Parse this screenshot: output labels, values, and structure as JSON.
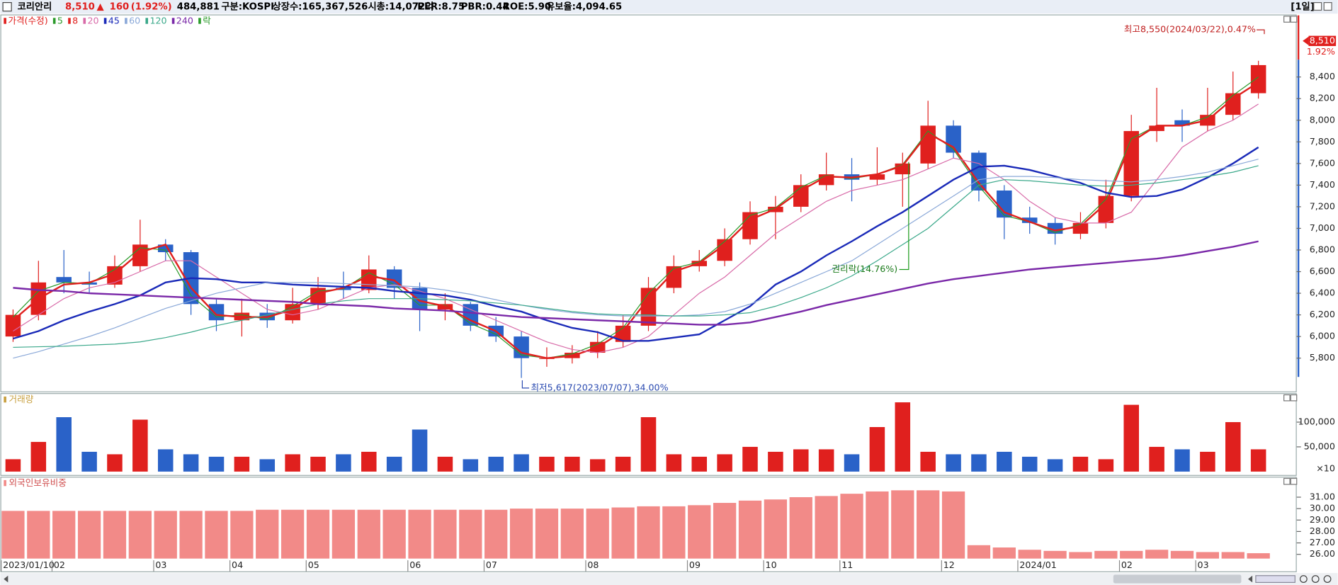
{
  "header": {
    "name": "코리안리",
    "price": "8,510",
    "arrow": "▲",
    "change": "160",
    "change_pct": "(1.92%)",
    "volume": "484,881",
    "market": "구분:KOSPI",
    "shares": "상장수:165,367,526",
    "cap": "시총:14,072억",
    "per": "PER:8.75",
    "pbr": "PBR:0.44",
    "roe": "ROE:5.90",
    "reserve": "유보율:4,094.65",
    "period": "[1일]"
  },
  "chart_data": [
    {
      "type": "candlestick",
      "title": "가격(수정)",
      "color": "#e0201e",
      "down_color": "#2a62c8",
      "rights_legend": "락",
      "rights_color": "#2a9a2a",
      "categories": [
        "2023/01/10",
        null,
        "02",
        null,
        null,
        null,
        "03",
        null,
        null,
        "04",
        null,
        null,
        "05",
        null,
        null,
        null,
        "06",
        null,
        null,
        "07",
        null,
        null,
        null,
        "08",
        null,
        null,
        null,
        "09",
        null,
        null,
        "10",
        null,
        null,
        "11",
        null,
        null,
        null,
        "12",
        null,
        null,
        "2024/01",
        null,
        null,
        null,
        "02",
        null,
        null,
        "03",
        null,
        null
      ],
      "ohlc": [
        [
          6000,
          6250,
          5950,
          6200
        ],
        [
          6200,
          6700,
          6150,
          6500
        ],
        [
          6550,
          6800,
          6400,
          6500
        ],
        [
          6500,
          6600,
          6400,
          6480
        ],
        [
          6480,
          6750,
          6450,
          6650
        ],
        [
          6650,
          7080,
          6600,
          6850
        ],
        [
          6850,
          6900,
          6700,
          6780
        ],
        [
          6780,
          6800,
          6200,
          6300
        ],
        [
          6300,
          6350,
          6050,
          6150
        ],
        [
          6150,
          6350,
          6000,
          6220
        ],
        [
          6220,
          6300,
          6080,
          6150
        ],
        [
          6150,
          6450,
          6120,
          6300
        ],
        [
          6300,
          6550,
          6250,
          6450
        ],
        [
          6450,
          6600,
          6350,
          6430
        ],
        [
          6430,
          6750,
          6400,
          6620
        ],
        [
          6620,
          6650,
          6350,
          6450
        ],
        [
          6450,
          6500,
          6050,
          6250
        ],
        [
          6250,
          6400,
          6150,
          6300
        ],
        [
          6300,
          6320,
          6050,
          6100
        ],
        [
          6100,
          6180,
          5950,
          6000
        ],
        [
          6000,
          6050,
          5617,
          5800
        ],
        [
          5800,
          5900,
          5720,
          5800
        ],
        [
          5800,
          5920,
          5750,
          5850
        ],
        [
          5850,
          6050,
          5800,
          5950
        ],
        [
          5950,
          6200,
          5900,
          6100
        ],
        [
          6100,
          6550,
          6050,
          6450
        ],
        [
          6450,
          6750,
          6400,
          6650
        ],
        [
          6650,
          6800,
          6600,
          6700
        ],
        [
          6700,
          7000,
          6650,
          6900
        ],
        [
          6900,
          7250,
          6850,
          7150
        ],
        [
          7150,
          7300,
          6900,
          7200
        ],
        [
          7200,
          7500,
          7150,
          7400
        ],
        [
          7400,
          7700,
          7350,
          7500
        ],
        [
          7500,
          7650,
          7250,
          7450
        ],
        [
          7450,
          7750,
          7400,
          7500
        ],
        [
          7500,
          7700,
          7200,
          7600
        ],
        [
          7600,
          8180,
          7550,
          7950
        ],
        [
          7950,
          8000,
          7650,
          7700
        ],
        [
          7700,
          7720,
          7250,
          7350
        ],
        [
          7350,
          7400,
          6900,
          7100
        ],
        [
          7100,
          7200,
          6950,
          7050
        ],
        [
          7050,
          7100,
          6850,
          6950
        ],
        [
          6950,
          7150,
          6900,
          7050
        ],
        [
          7050,
          7450,
          7000,
          7300
        ],
        [
          7300,
          8050,
          7250,
          7900
        ],
        [
          7900,
          8300,
          7800,
          7950
        ],
        [
          8000,
          8100,
          7800,
          7950
        ],
        [
          7950,
          8300,
          7900,
          8050
        ],
        [
          8050,
          8450,
          8000,
          8250
        ],
        [
          8250,
          8550,
          8200,
          8510
        ]
      ],
      "series": [
        {
          "name": "5",
          "color": "#2a9a2a",
          "values": [
            6180,
            6420,
            6500,
            6490,
            6620,
            6820,
            6800,
            6380,
            6180,
            6200,
            6160,
            6280,
            6420,
            6440,
            6590,
            6480,
            6290,
            6290,
            6120,
            6020,
            5830,
            5800,
            5840,
            5930,
            6080,
            6400,
            6630,
            6690,
            6880,
            7120,
            7190,
            7380,
            7490,
            7460,
            7500,
            7590,
            7900,
            7730,
            7390,
            7120,
            7060,
            6960,
            7040,
            7270,
            7830,
            7950,
            7950,
            8030,
            8230,
            8400
          ]
        },
        {
          "name": "8",
          "color": "#e0201e",
          "bold": true,
          "values": [
            6150,
            6350,
            6480,
            6500,
            6580,
            6780,
            6850,
            6450,
            6200,
            6180,
            6180,
            6250,
            6400,
            6450,
            6560,
            6520,
            6330,
            6280,
            6150,
            6050,
            5850,
            5800,
            5820,
            5900,
            6050,
            6350,
            6600,
            6680,
            6850,
            7080,
            7180,
            7350,
            7480,
            7470,
            7500,
            7580,
            7880,
            7750,
            7420,
            7150,
            7060,
            6980,
            7020,
            7230,
            7800,
            7950,
            7950,
            8000,
            8200,
            8350
          ]
        },
        {
          "name": "20",
          "color": "#d86aa8",
          "values": [
            6050,
            6200,
            6350,
            6450,
            6500,
            6600,
            6700,
            6700,
            6550,
            6400,
            6250,
            6200,
            6250,
            6350,
            6450,
            6480,
            6420,
            6350,
            6250,
            6150,
            6050,
            5950,
            5880,
            5850,
            5900,
            6000,
            6200,
            6400,
            6550,
            6750,
            6950,
            7100,
            7250,
            7350,
            7400,
            7450,
            7550,
            7650,
            7600,
            7450,
            7250,
            7100,
            7050,
            7050,
            7150,
            7450,
            7750,
            7900,
            8000,
            8150
          ]
        },
        {
          "name": "45",
          "color": "#1a2ab8",
          "bold": true,
          "values": [
            5980,
            6050,
            6150,
            6230,
            6300,
            6380,
            6500,
            6540,
            6530,
            6500,
            6500,
            6480,
            6470,
            6460,
            6450,
            6420,
            6400,
            6380,
            6340,
            6280,
            6230,
            6150,
            6080,
            6040,
            5960,
            5960,
            5990,
            6020,
            6150,
            6280,
            6480,
            6600,
            6750,
            6880,
            7020,
            7150,
            7300,
            7450,
            7570,
            7580,
            7540,
            7480,
            7420,
            7330,
            7290,
            7300,
            7360,
            7470,
            7600,
            7750
          ]
        },
        {
          "name": "60",
          "color": "#8aa8d8",
          "values": [
            5800,
            5860,
            5930,
            6000,
            6080,
            6170,
            6260,
            6330,
            6400,
            6450,
            6500,
            6500,
            6500,
            6490,
            6480,
            6470,
            6460,
            6430,
            6390,
            6340,
            6290,
            6250,
            6220,
            6200,
            6190,
            6190,
            6190,
            6200,
            6230,
            6300,
            6400,
            6500,
            6600,
            6700,
            6850,
            7000,
            7150,
            7300,
            7450,
            7480,
            7480,
            7470,
            7450,
            7440,
            7430,
            7450,
            7480,
            7520,
            7580,
            7640
          ]
        },
        {
          "name": "120",
          "color": "#3aa88a",
          "values": [
            5900,
            5905,
            5910,
            5920,
            5930,
            5950,
            5990,
            6040,
            6100,
            6150,
            6200,
            6250,
            6300,
            6330,
            6350,
            6350,
            6350,
            6340,
            6330,
            6310,
            6290,
            6260,
            6230,
            6210,
            6200,
            6200,
            6190,
            6190,
            6200,
            6220,
            6280,
            6360,
            6450,
            6560,
            6700,
            6850,
            7000,
            7200,
            7400,
            7450,
            7440,
            7420,
            7400,
            7390,
            7400,
            7420,
            7450,
            7480,
            7520,
            7580
          ]
        },
        {
          "name": "240",
          "color": "#7a28a8",
          "bold": true,
          "values": [
            6450,
            6430,
            6420,
            6400,
            6390,
            6380,
            6370,
            6360,
            6350,
            6340,
            6330,
            6320,
            6300,
            6290,
            6280,
            6260,
            6250,
            6240,
            6220,
            6200,
            6180,
            6170,
            6160,
            6150,
            6140,
            6130,
            6120,
            6110,
            6110,
            6130,
            6180,
            6230,
            6290,
            6340,
            6390,
            6440,
            6490,
            6530,
            6560,
            6590,
            6620,
            6640,
            6660,
            6680,
            6700,
            6720,
            6750,
            6790,
            6830,
            6880
          ]
        }
      ],
      "ylim": [
        5500,
        8970
      ],
      "yticks": [
        {
          "value": 5800,
          "label": "5,800"
        },
        {
          "value": 6000,
          "label": "6,000"
        },
        {
          "value": 6200,
          "label": "6,200"
        },
        {
          "value": 6400,
          "label": "6,400"
        },
        {
          "value": 6600,
          "label": "6,600"
        },
        {
          "value": 6800,
          "label": "6,800"
        },
        {
          "value": 7000,
          "label": "7,000"
        },
        {
          "value": 7200,
          "label": "7,200"
        },
        {
          "value": 7400,
          "label": "7,400"
        },
        {
          "value": 7600,
          "label": "7,600"
        },
        {
          "value": 7800,
          "label": "7,800"
        },
        {
          "value": 8000,
          "label": "8,000"
        },
        {
          "value": 8200,
          "label": "8,200"
        },
        {
          "value": 8400,
          "label": "8,400"
        }
      ],
      "annotations": [
        "최고8,550(2024/03/22),0.47%",
        "최저5,617(2023/07/07),34.00%",
        "권리락(14.76%)"
      ],
      "last_price": "8,510",
      "last_change": "1.92%"
    },
    {
      "type": "bar",
      "title": "거래량",
      "color": "#c8a040",
      "annotation": "×10",
      "values": [
        25000,
        60000,
        110000,
        40000,
        35000,
        105000,
        45000,
        35000,
        30000,
        30000,
        25000,
        35000,
        30000,
        35000,
        40000,
        30000,
        85000,
        30000,
        25000,
        30000,
        35000,
        30000,
        30000,
        25000,
        30000,
        110000,
        35000,
        30000,
        35000,
        50000,
        40000,
        45000,
        45000,
        35000,
        90000,
        140000,
        40000,
        35000,
        35000,
        40000,
        30000,
        25000,
        30000,
        25000,
        135000,
        50000,
        45000,
        40000,
        100000,
        45000
      ],
      "ylim": [
        0,
        150000
      ],
      "yticks": [
        {
          "value": 50000,
          "label": "50,000"
        },
        {
          "value": 100000,
          "label": "100,000"
        }
      ]
    },
    {
      "type": "bar",
      "title": "외국인보유비중",
      "color": "#f28a88",
      "values": [
        29.8,
        29.8,
        29.8,
        29.8,
        29.8,
        29.8,
        29.8,
        29.8,
        29.8,
        29.8,
        29.9,
        29.9,
        29.9,
        29.9,
        29.9,
        29.9,
        29.9,
        29.9,
        29.9,
        29.9,
        30.0,
        30.0,
        30.0,
        30.0,
        30.1,
        30.2,
        30.2,
        30.3,
        30.5,
        30.7,
        30.8,
        31.0,
        31.1,
        31.3,
        31.5,
        31.6,
        31.6,
        31.5,
        26.8,
        26.6,
        26.4,
        26.3,
        26.2,
        26.3,
        26.3,
        26.4,
        26.3,
        26.2,
        26.2,
        26.1
      ],
      "ylim": [
        25.63,
        32.12
      ],
      "yticks": [
        {
          "value": 26,
          "label": "26.00"
        },
        {
          "value": 27,
          "label": "27.00"
        },
        {
          "value": 28,
          "label": "28.00"
        },
        {
          "value": 29,
          "label": "29.00"
        },
        {
          "value": 30,
          "label": "30.00"
        },
        {
          "value": 31,
          "label": "31.00"
        }
      ]
    }
  ]
}
